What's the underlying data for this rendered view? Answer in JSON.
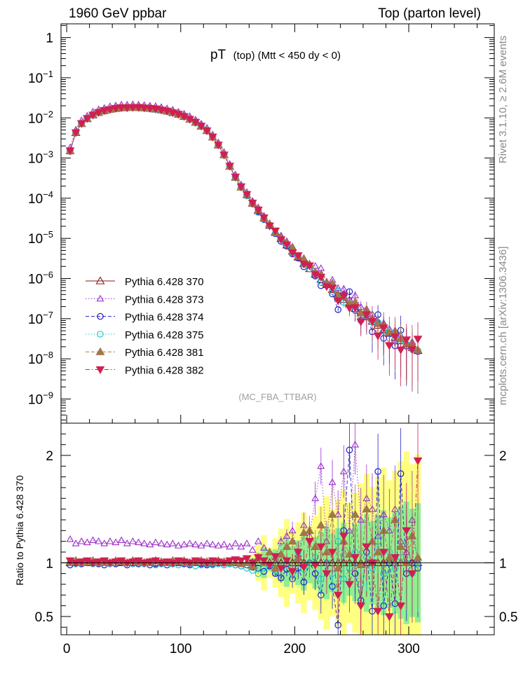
{
  "header": {
    "left_label": "1960 GeV ppbar",
    "right_label": "Top (parton level)"
  },
  "side_labels": {
    "rivet": "Rivet 3.1.10, ≥ 2.6M events",
    "mcplots": "mcplots.cern.ch [arXiv:1306.3436]"
  },
  "chart_data": {
    "type": "scatter",
    "title_main": "pT",
    "title_sub": "(top) (Mtt < 450 dy < 0)",
    "analysis_label": "(MC_FBA_TTBAR)",
    "ratio_ylabel": "Ratio to Pythia 6.428 370",
    "xlim": [
      -5,
      375
    ],
    "ylim_main": [
      2.5e-10,
      2.2
    ],
    "yscale_main": "log",
    "ylim_ratio": [
      0.33,
      2.3
    ],
    "x_ticks": [
      0,
      100,
      200,
      300
    ],
    "main_y_tick_labels": [
      {
        "value": 1,
        "base": "1",
        "exp": ""
      },
      {
        "value": 0.1,
        "base": "10",
        "exp": "−1"
      },
      {
        "value": 0.01,
        "base": "10",
        "exp": "−2"
      },
      {
        "value": 0.001,
        "base": "10",
        "exp": "−3"
      },
      {
        "value": 0.0001,
        "base": "10",
        "exp": "−4"
      },
      {
        "value": 1e-05,
        "base": "10",
        "exp": "−5"
      },
      {
        "value": 1e-06,
        "base": "10",
        "exp": "−6"
      },
      {
        "value": 1e-07,
        "base": "10",
        "exp": "−7"
      },
      {
        "value": 1e-08,
        "base": "10",
        "exp": "−8"
      },
      {
        "value": 1e-09,
        "base": "10",
        "exp": "−9"
      }
    ],
    "ratio_y_tick_labels": [
      {
        "value": 2,
        "label": "2"
      },
      {
        "value": 1,
        "label": "1"
      },
      {
        "value": 0.5,
        "label": "0.5"
      }
    ],
    "legend_position": "bottom-left",
    "reference_x": [
      3,
      8,
      13,
      18,
      23,
      28,
      33,
      38,
      43,
      48,
      53,
      58,
      63,
      68,
      73,
      78,
      83,
      88,
      93,
      98,
      103,
      108,
      113,
      118,
      123,
      128,
      133,
      138,
      143,
      148,
      153,
      158,
      163,
      168,
      173,
      178,
      183,
      188,
      193,
      198,
      203,
      208,
      213,
      218,
      223,
      228,
      233,
      238,
      243,
      248,
      253,
      258,
      263,
      268,
      273,
      278,
      283,
      288,
      293,
      298,
      303,
      308
    ],
    "reference_y": [
      0.0015,
      0.0043,
      0.0072,
      0.0095,
      0.0118,
      0.0136,
      0.015,
      0.0162,
      0.0171,
      0.0177,
      0.018,
      0.0181,
      0.018,
      0.0177,
      0.0172,
      0.0165,
      0.0157,
      0.0147,
      0.0135,
      0.0122,
      0.0108,
      0.0093,
      0.0077,
      0.0062,
      0.0048,
      0.0033,
      0.0021,
      0.0012,
      0.00062,
      0.00033,
      0.00019,
      0.00012,
      7.6e-05,
      4.9e-05,
      3.2e-05,
      2.1e-05,
      1.45e-05,
      9.8e-06,
      6.8e-06,
      4.8e-06,
      3.4e-06,
      2.4e-06,
      1.75e-06,
      1.28e-06,
      9.5e-07,
      7e-07,
      5.3e-07,
      4e-07,
      3e-07,
      2.3e-07,
      1.8e-07,
      1.4e-07,
      1.1e-07,
      8.6e-08,
      6.8e-08,
      5.4e-08,
      4.3e-08,
      3.4e-08,
      2.8e-08,
      2.3e-08,
      1.9e-08,
      1.6e-08
    ],
    "series": [
      {
        "name": "Pythia 6.428 370",
        "color": "#8b1a1a",
        "marker": "triangle-open",
        "line": "solid",
        "ratio": [
          1,
          1,
          1,
          1,
          1,
          1,
          1,
          1,
          1,
          1,
          1,
          1,
          1,
          1,
          1,
          1,
          1,
          1,
          1,
          1,
          1,
          1,
          1,
          1,
          1,
          1,
          1,
          1,
          1,
          1,
          1,
          1,
          1,
          1,
          1,
          1,
          1,
          1,
          1,
          1,
          1,
          1,
          1,
          1,
          1,
          1,
          1,
          1,
          1,
          1,
          1,
          1,
          1,
          1,
          1,
          1,
          1,
          1,
          1,
          1,
          1,
          1
        ]
      },
      {
        "name": "Pythia 6.428 373",
        "color": "#9b30c8",
        "marker": "triangle-open-small",
        "line": "dotted",
        "ratio": [
          1.22,
          1.18,
          1.2,
          1.19,
          1.21,
          1.2,
          1.18,
          1.2,
          1.19,
          1.21,
          1.18,
          1.2,
          1.19,
          1.18,
          1.17,
          1.19,
          1.18,
          1.17,
          1.18,
          1.16,
          1.17,
          1.18,
          1.17,
          1.16,
          1.18,
          1.17,
          1.16,
          1.17,
          1.15,
          1.18,
          1.15,
          1.18,
          1.12,
          1.2,
          1.14,
          1.1,
          1.05,
          1.2,
          1.25,
          1.3,
          1.08,
          1.35,
          1.25,
          1.6,
          1.9,
          1.2,
          1.75,
          1.45,
          1.85,
          1.3,
          2.1,
          1.4,
          1.6,
          1.5,
          1.25,
          1.45,
          1.3,
          1.5,
          1.2,
          1.1,
          1.4,
          1.0
        ]
      },
      {
        "name": "Pythia 6.428 374",
        "color": "#2020c8",
        "marker": "circle-open",
        "line": "dashed",
        "ratio": [
          0.98,
          1.0,
          0.99,
          1.01,
          1.0,
          0.99,
          0.98,
          1.0,
          0.99,
          1.0,
          0.98,
          1.0,
          0.99,
          1.0,
          0.98,
          0.99,
          1.0,
          0.98,
          0.99,
          1.0,
          0.99,
          0.98,
          1.0,
          0.99,
          0.98,
          0.99,
          1.0,
          0.98,
          0.99,
          0.98,
          0.97,
          0.98,
          0.96,
          0.95,
          0.92,
          0.97,
          0.9,
          0.86,
          0.94,
          0.85,
          0.95,
          0.82,
          1.0,
          0.9,
          0.7,
          1.0,
          0.78,
          0.42,
          1.3,
          2.05,
          0.9,
          0.65,
          1.1,
          0.55,
          1.85,
          0.6,
          1.0,
          0.62,
          1.83,
          0.9,
          1.0,
          0.95
        ]
      },
      {
        "name": "Pythia 6.428 375",
        "color": "#20c8c8",
        "marker": "circle-open",
        "line": "dotted",
        "ratio": [
          1.0,
          0.99,
          1.0,
          1.01,
          0.99,
          1.0,
          1.0,
          0.99,
          1.0,
          1.01,
          1.0,
          0.99,
          1.0,
          0.99,
          1.0,
          0.98,
          0.99,
          1.0,
          0.99,
          0.98,
          1.0,
          0.99,
          0.97,
          0.98,
          0.99,
          0.98,
          0.99,
          0.98,
          0.99,
          0.98,
          0.97,
          0.95,
          0.93,
          0.9,
          0.95,
          0.98,
          0.93,
          0.97,
          1.0,
          0.9,
          1.1,
          0.94,
          1.0,
          1.05,
          0.85,
          1.0,
          0.9,
          1.2,
          0.85,
          0.95,
          1.1,
          0.8,
          1.05,
          0.95,
          1.2,
          0.9,
          1.1,
          0.95,
          1.05,
          1.0,
          0.9,
          1.0
        ]
      },
      {
        "name": "Pythia 6.428 381",
        "color": "#a0784a",
        "marker": "triangle-filled",
        "line": "dashed",
        "ratio": [
          1.01,
          1.02,
          1.0,
          1.01,
          1.02,
          1.0,
          1.01,
          1.0,
          1.02,
          1.01,
          1.0,
          1.02,
          1.01,
          1.0,
          1.01,
          1.02,
          1.01,
          1.0,
          1.02,
          1.01,
          1.02,
          1.0,
          1.01,
          1.02,
          1.01,
          1.0,
          1.02,
          1.01,
          1.0,
          1.01,
          0.99,
          1.0,
          0.97,
          1.05,
          1.0,
          1.1,
          0.95,
          1.08,
          1.15,
          1.2,
          1.05,
          1.28,
          1.3,
          1.15,
          1.35,
          1.1,
          1.45,
          0.95,
          1.2,
          1.08,
          1.45,
          0.98,
          1.5,
          1.2,
          1.1,
          1.3,
          1.05,
          1.4,
          1.15,
          1.0,
          1.25,
          1.05
        ]
      },
      {
        "name": "Pythia 6.428 382",
        "color": "#d02050",
        "marker": "triangle-down-filled",
        "line": "dashdot",
        "ratio": [
          1.02,
          1.0,
          1.01,
          1.02,
          1.0,
          1.01,
          1.02,
          1.0,
          1.01,
          1.02,
          1.0,
          1.01,
          1.02,
          1.0,
          1.01,
          1.02,
          1.0,
          1.01,
          1.0,
          1.02,
          1.01,
          1.0,
          1.02,
          1.01,
          1.0,
          1.02,
          1.01,
          1.0,
          1.02,
          1.03,
          1.02,
          1.04,
          1.0,
          1.05,
          1.02,
          0.98,
          1.06,
          0.95,
          1.02,
          0.92,
          1.1,
          0.96,
          1.2,
          0.98,
          1.15,
          0.9,
          1.1,
          0.7,
          1.25,
          0.8,
          1.05,
          0.6,
          1.15,
          1.0,
          0.55,
          1.1,
          0.5,
          1.05,
          0.6,
          1.3,
          0.9,
          1.95
        ]
      }
    ]
  }
}
